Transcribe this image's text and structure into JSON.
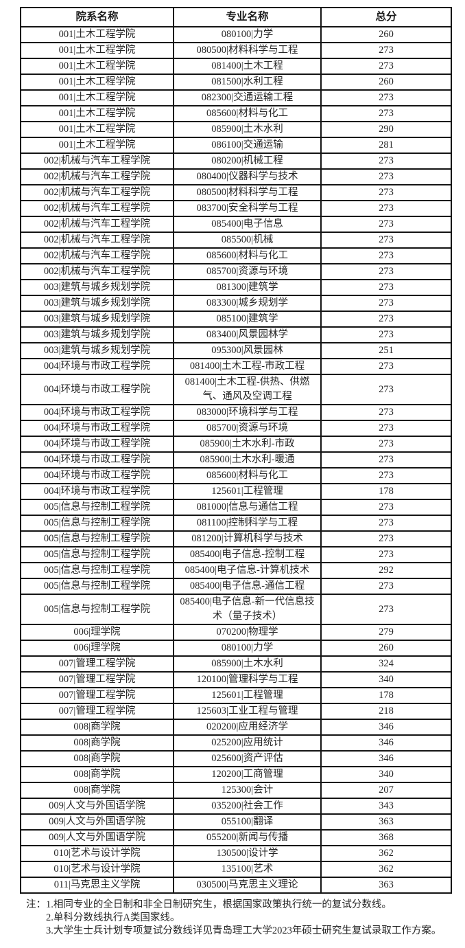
{
  "table": {
    "headers": [
      "院系名称",
      "专业名称",
      "总分"
    ],
    "rows": [
      [
        "001|土木工程学院",
        "080100|力学",
        "260"
      ],
      [
        "001|土木工程学院",
        "080500|材料科学与工程",
        "273"
      ],
      [
        "001|土木工程学院",
        "081400|土木工程",
        "273"
      ],
      [
        "001|土木工程学院",
        "081500|水利工程",
        "260"
      ],
      [
        "001|土木工程学院",
        "082300|交通运输工程",
        "273"
      ],
      [
        "001|土木工程学院",
        "085600|材料与化工",
        "273"
      ],
      [
        "001|土木工程学院",
        "085900|土木水利",
        "290"
      ],
      [
        "001|土木工程学院",
        "086100|交通运输",
        "281"
      ],
      [
        "002|机械与汽车工程学院",
        "080200|机械工程",
        "273"
      ],
      [
        "002|机械与汽车工程学院",
        "080400|仪器科学与技术",
        "273"
      ],
      [
        "002|机械与汽车工程学院",
        "080500|材料科学与工程",
        "273"
      ],
      [
        "002|机械与汽车工程学院",
        "083700|安全科学与工程",
        "273"
      ],
      [
        "002|机械与汽车工程学院",
        "085400|电子信息",
        "273"
      ],
      [
        "002|机械与汽车工程学院",
        "085500|机械",
        "273"
      ],
      [
        "002|机械与汽车工程学院",
        "085600|材料与化工",
        "273"
      ],
      [
        "002|机械与汽车工程学院",
        "085700|资源与环境",
        "273"
      ],
      [
        "003|建筑与城乡规划学院",
        "081300|建筑学",
        "273"
      ],
      [
        "003|建筑与城乡规划学院",
        "083300|城乡规划学",
        "273"
      ],
      [
        "003|建筑与城乡规划学院",
        "085100|建筑学",
        "273"
      ],
      [
        "003|建筑与城乡规划学院",
        "083400|风景园林学",
        "273"
      ],
      [
        "003|建筑与城乡规划学院",
        "095300|风景园林",
        "251"
      ],
      [
        "004|环境与市政工程学院",
        "081400|土木工程-市政工程",
        "273"
      ],
      [
        "004|环境与市政工程学院",
        "081400|土木工程-供热、供燃气、通风及空调工程",
        "273"
      ],
      [
        "004|环境与市政工程学院",
        "083000|环境科学与工程",
        "273"
      ],
      [
        "004|环境与市政工程学院",
        "085700|资源与环境",
        "273"
      ],
      [
        "004|环境与市政工程学院",
        "085900|土木水利-市政",
        "273"
      ],
      [
        "004|环境与市政工程学院",
        "085900|土木水利-暖通",
        "273"
      ],
      [
        "004|环境与市政工程学院",
        "085600|材料与化工",
        "273"
      ],
      [
        "004|环境与市政工程学院",
        "125601|工程管理",
        "178"
      ],
      [
        "005|信息与控制工程学院",
        "081000|信息与通信工程",
        "273"
      ],
      [
        "005|信息与控制工程学院",
        "081100|控制科学与工程",
        "273"
      ],
      [
        "005|信息与控制工程学院",
        "081200|计算机科学与技术",
        "273"
      ],
      [
        "005|信息与控制工程学院",
        "085400|电子信息-控制工程",
        "273"
      ],
      [
        "005|信息与控制工程学院",
        "085400|电子信息-计算机技术",
        "292"
      ],
      [
        "005|信息与控制工程学院",
        "085400|电子信息-通信工程",
        "273"
      ],
      [
        "005|信息与控制工程学院",
        "085400|电子信息-新一代信息技术（量子技术）",
        "273"
      ],
      [
        "006|理学院",
        "070200|物理学",
        "279"
      ],
      [
        "006|理学院",
        "080100|力学",
        "260"
      ],
      [
        "007|管理工程学院",
        "085900|土木水利",
        "324"
      ],
      [
        "007|管理工程学院",
        "120100|管理科学与工程",
        "340"
      ],
      [
        "007|管理工程学院",
        "125601|工程管理",
        "178"
      ],
      [
        "007|管理工程学院",
        "125603|工业工程与管理",
        "218"
      ],
      [
        "008|商学院",
        "020200|应用经济学",
        "346"
      ],
      [
        "008|商学院",
        "025200|应用统计",
        "346"
      ],
      [
        "008|商学院",
        "025600|资产评估",
        "346"
      ],
      [
        "008|商学院",
        "120200|工商管理",
        "340"
      ],
      [
        "008|商学院",
        "125300|会计",
        "207"
      ],
      [
        "009|人文与外国语学院",
        "035200|社会工作",
        "343"
      ],
      [
        "009|人文与外国语学院",
        "055100|翻译",
        "363"
      ],
      [
        "009|人文与外国语学院",
        "055200|新闻与传播",
        "368"
      ],
      [
        "010|艺术与设计学院",
        "130500|设计学",
        "362"
      ],
      [
        "010|艺术与设计学院",
        "135100|艺术",
        "362"
      ],
      [
        "011|马克思主义学院",
        "030500|马克思主义理论",
        "363"
      ]
    ]
  },
  "notes": {
    "prefix": "注：",
    "items": [
      "1.相同专业的全日制和非全日制研究生，根据国家政策执行统一的复试分数线。",
      "2.单科分数线执行A类国家线。",
      "3.大学生士兵计划专项复试分数线详见青岛理工大学2023年硕士研究生复试录取工作方案。"
    ]
  }
}
